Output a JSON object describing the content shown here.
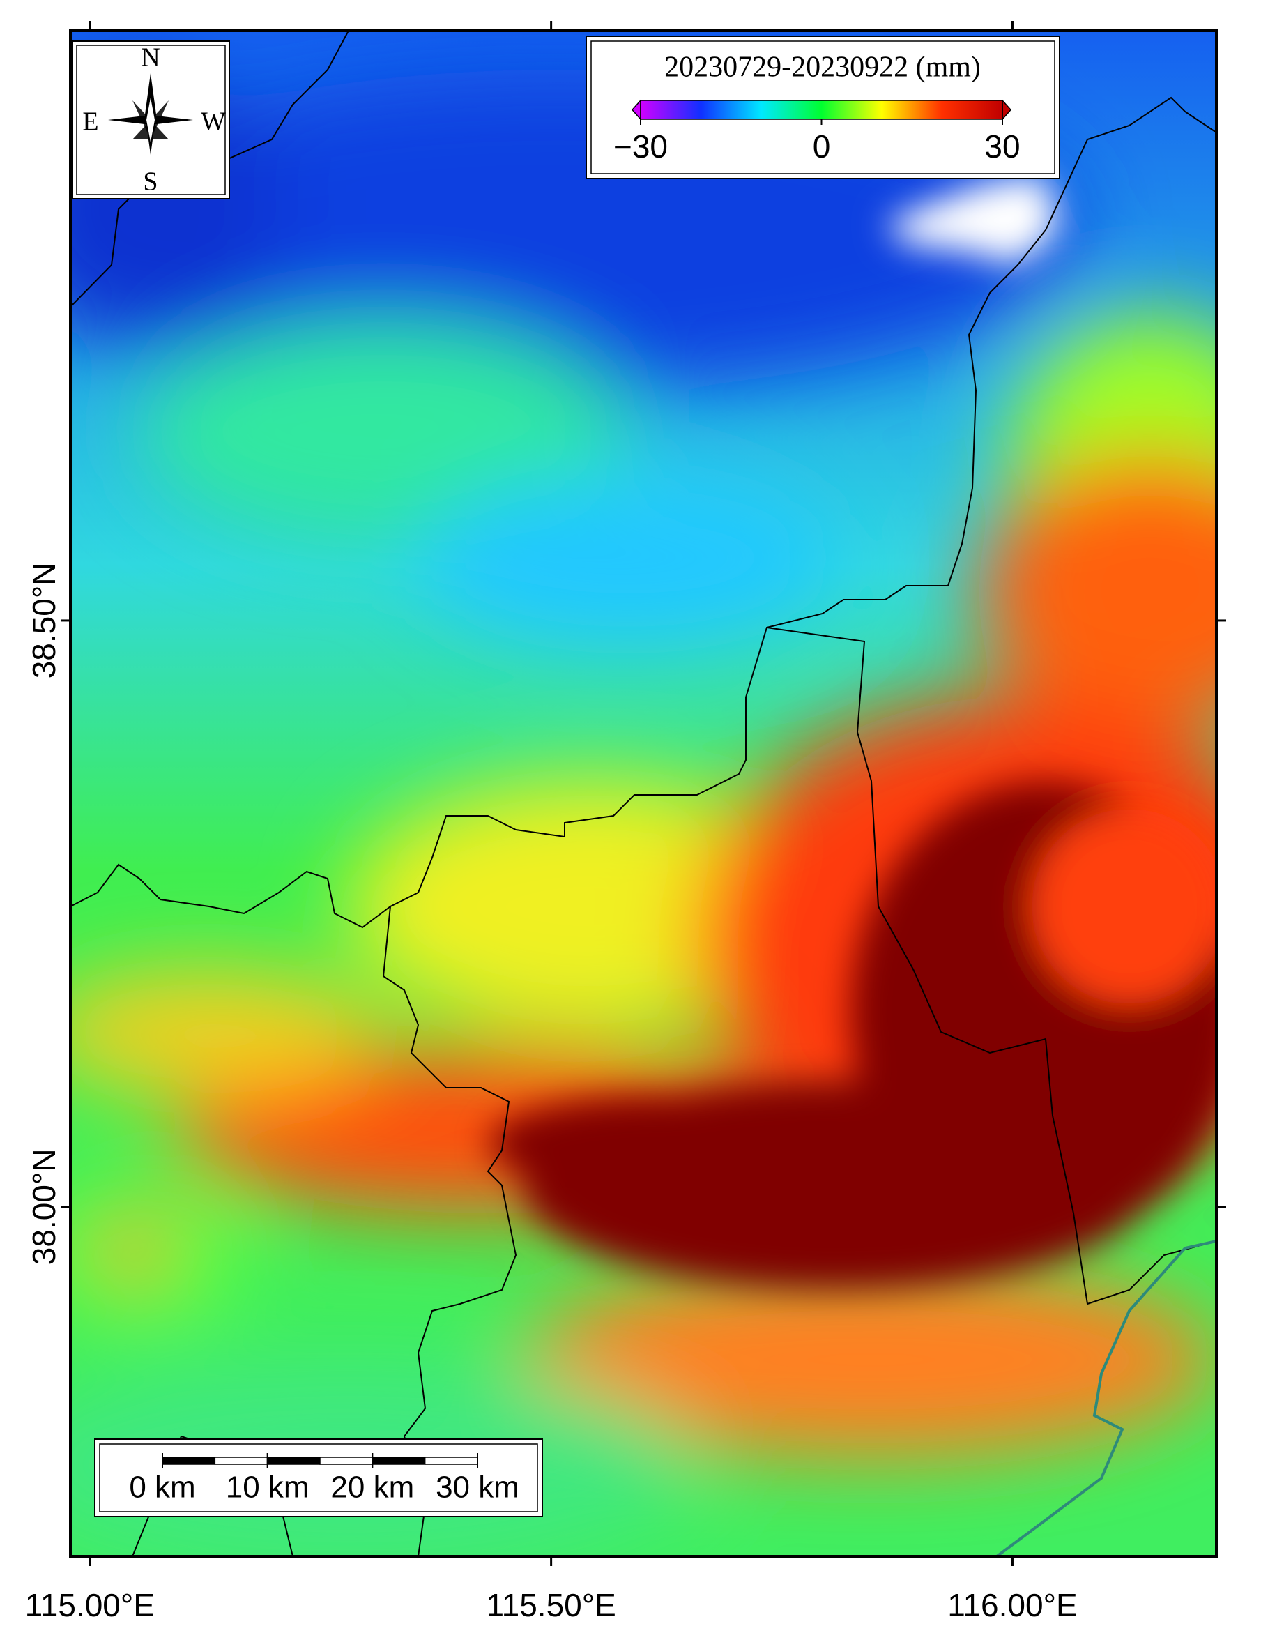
{
  "map": {
    "xlim": [
      114.979,
      116.221
    ],
    "ylim": [
      37.702,
      39.003
    ],
    "xticks": [
      {
        "value": 115.0,
        "label": "115.00°E"
      },
      {
        "value": 115.5,
        "label": "115.50°E"
      },
      {
        "value": 116.0,
        "label": "116.00°E"
      }
    ],
    "yticks": [
      {
        "value": 38.5,
        "label": "38.50°N"
      },
      {
        "value": 38.0,
        "label": "38.00°N"
      }
    ]
  },
  "compass": {
    "north": "N",
    "east": "E",
    "west": "W",
    "south": "S"
  },
  "colorbar": {
    "title": "20230729-20230922 (mm)",
    "range": [
      -30,
      30
    ],
    "ticks": [
      {
        "value": -30,
        "label": "−30"
      },
      0,
      30
    ],
    "colors": [
      "#d000ff",
      "#1030ff",
      "#00e8ff",
      "#00ff30",
      "#ffff00",
      "#ff3000",
      "#c00000"
    ]
  },
  "scalebar": {
    "labels": [
      "0 km",
      "10 km",
      "20 km",
      "30 km"
    ]
  }
}
